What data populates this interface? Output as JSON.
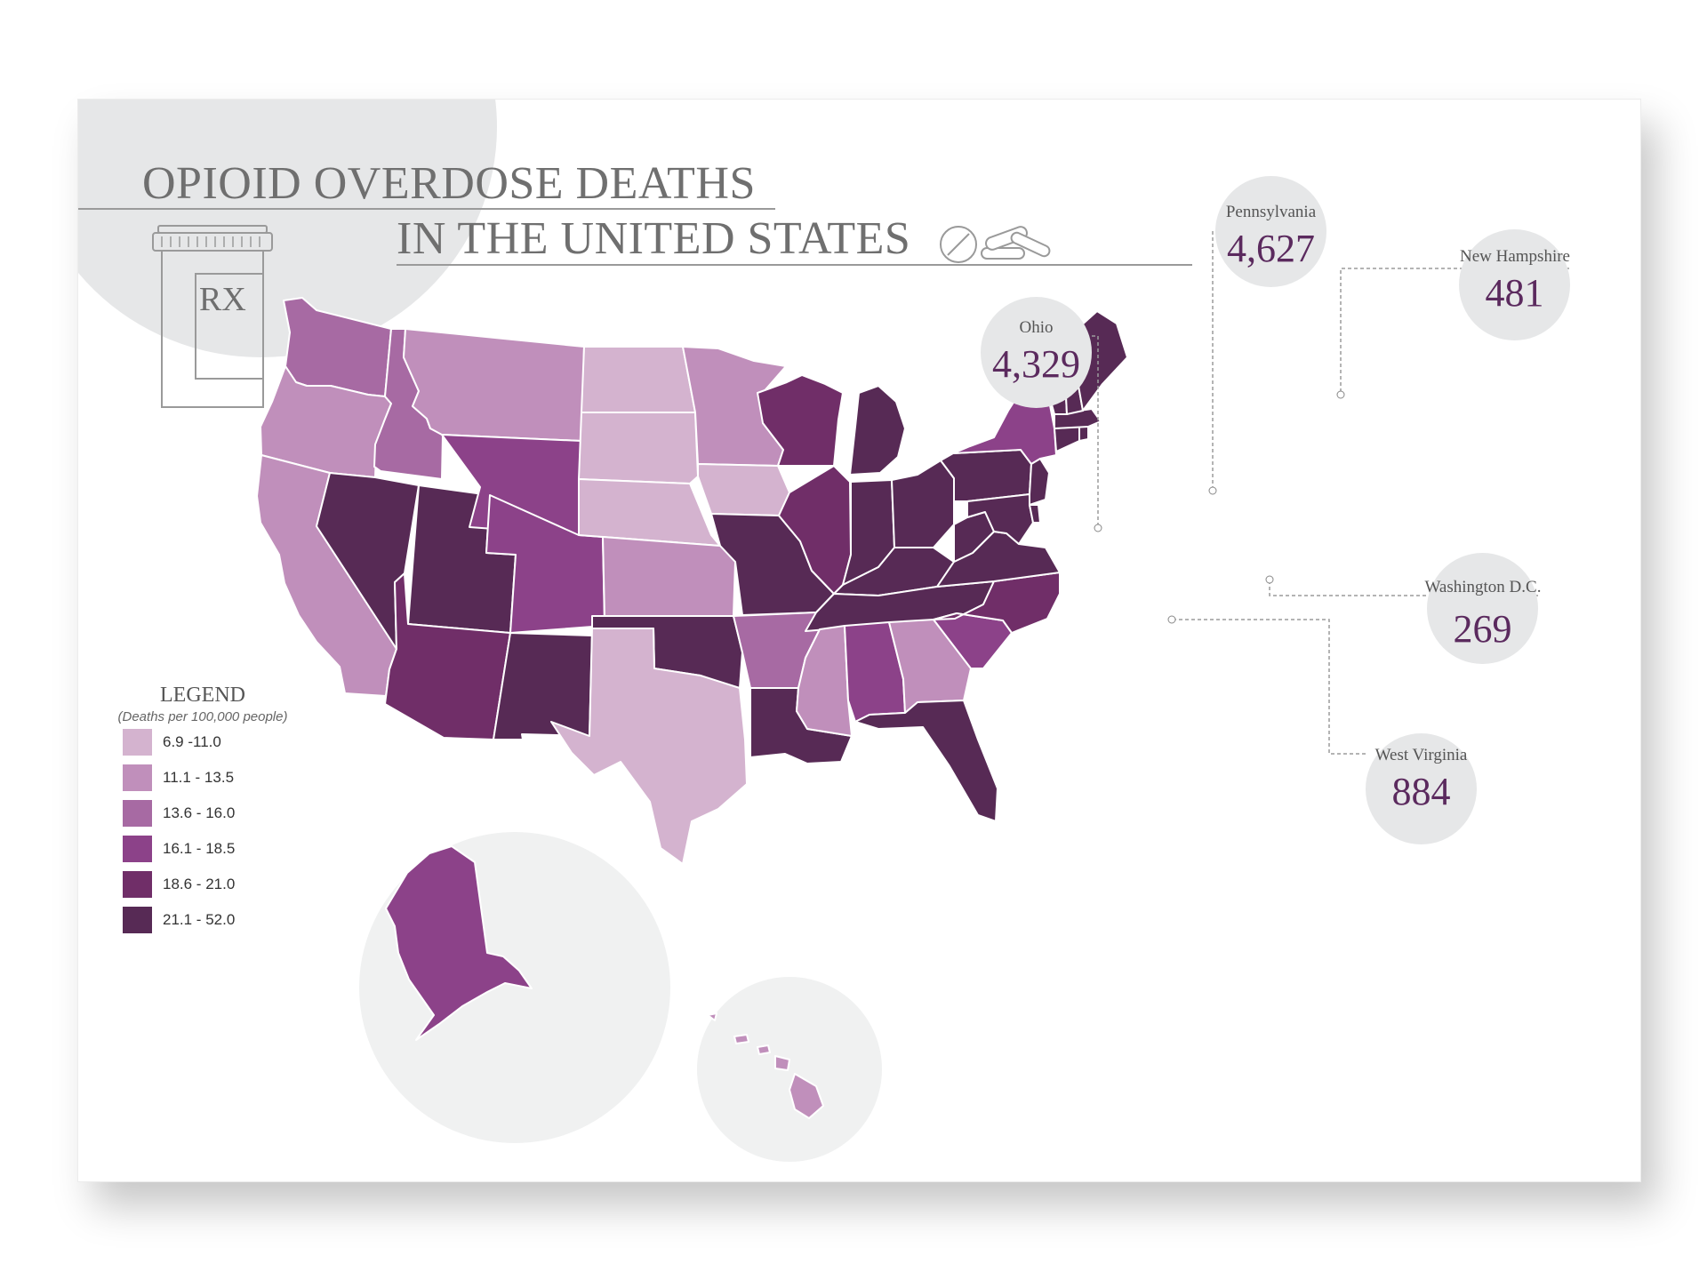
{
  "title": {
    "line1": "OPIOID OVERDOSE DEATHS",
    "line2": "IN THE UNITED STATES",
    "bottle_label": "RX"
  },
  "legend": {
    "title": "LEGEND",
    "subtitle": "(Deaths per 100,000 people)",
    "items": [
      {
        "label": "6.9 -11.0",
        "color": "#d4b3cf"
      },
      {
        "label": "11.1 - 13.5",
        "color": "#c08fbb"
      },
      {
        "label": "13.6 - 16.0",
        "color": "#a76aa3"
      },
      {
        "label": "16.1 - 18.5",
        "color": "#8c4289"
      },
      {
        "label": "18.6 - 21.0",
        "color": "#702e68"
      },
      {
        "label": "21.1 - 52.0",
        "color": "#572a55"
      }
    ]
  },
  "callouts": [
    {
      "name": "Ohio",
      "value": "4,329"
    },
    {
      "name": "Pennsylvania",
      "value": "4,627"
    },
    {
      "name": "New Hampshire",
      "value": "481"
    },
    {
      "name": "Washington D.C.",
      "value": "269"
    },
    {
      "name": "West Virginia",
      "value": "884"
    }
  ],
  "states": [
    {
      "name": "Washington",
      "bin": 2
    },
    {
      "name": "Oregon",
      "bin": 1
    },
    {
      "name": "California",
      "bin": 1
    },
    {
      "name": "Idaho",
      "bin": 2
    },
    {
      "name": "Nevada",
      "bin": 5
    },
    {
      "name": "Utah",
      "bin": 5
    },
    {
      "name": "Arizona",
      "bin": 4
    },
    {
      "name": "Montana",
      "bin": 1
    },
    {
      "name": "Wyoming",
      "bin": 3
    },
    {
      "name": "Colorado",
      "bin": 3
    },
    {
      "name": "New Mexico",
      "bin": 5
    },
    {
      "name": "North Dakota",
      "bin": 0
    },
    {
      "name": "South Dakota",
      "bin": 0
    },
    {
      "name": "Nebraska",
      "bin": 0
    },
    {
      "name": "Kansas",
      "bin": 1
    },
    {
      "name": "Oklahoma",
      "bin": 5
    },
    {
      "name": "Texas",
      "bin": 0
    },
    {
      "name": "Minnesota",
      "bin": 1
    },
    {
      "name": "Iowa",
      "bin": 0
    },
    {
      "name": "Missouri",
      "bin": 5
    },
    {
      "name": "Arkansas",
      "bin": 2
    },
    {
      "name": "Louisiana",
      "bin": 5
    },
    {
      "name": "Wisconsin",
      "bin": 4
    },
    {
      "name": "Illinois",
      "bin": 4
    },
    {
      "name": "Michigan",
      "bin": 5
    },
    {
      "name": "Indiana",
      "bin": 5
    },
    {
      "name": "Ohio",
      "bin": 5
    },
    {
      "name": "Kentucky",
      "bin": 5
    },
    {
      "name": "Tennessee",
      "bin": 5
    },
    {
      "name": "Mississippi",
      "bin": 1
    },
    {
      "name": "Alabama",
      "bin": 3
    },
    {
      "name": "Georgia",
      "bin": 1
    },
    {
      "name": "Florida",
      "bin": 5
    },
    {
      "name": "South Carolina",
      "bin": 3
    },
    {
      "name": "North Carolina",
      "bin": 4
    },
    {
      "name": "Virginia",
      "bin": 5
    },
    {
      "name": "West Virginia",
      "bin": 5
    },
    {
      "name": "Pennsylvania",
      "bin": 5
    },
    {
      "name": "New York",
      "bin": 3
    },
    {
      "name": "New Jersey",
      "bin": 5
    },
    {
      "name": "Maryland",
      "bin": 5
    },
    {
      "name": "Delaware",
      "bin": 5
    },
    {
      "name": "Connecticut",
      "bin": 5
    },
    {
      "name": "Rhode Island",
      "bin": 5
    },
    {
      "name": "Massachusetts",
      "bin": 5
    },
    {
      "name": "Vermont",
      "bin": 5
    },
    {
      "name": "New Hampshire",
      "bin": 5
    },
    {
      "name": "Maine",
      "bin": 5
    },
    {
      "name": "Alaska",
      "bin": 3
    },
    {
      "name": "Hawaii",
      "bin": 1
    }
  ]
}
